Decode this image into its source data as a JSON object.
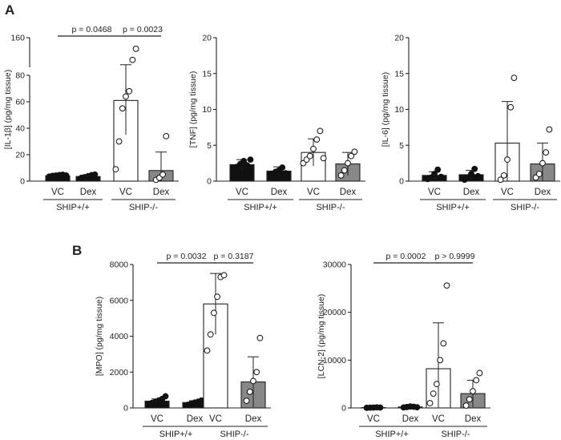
{
  "panel_labels": [
    "A",
    "B"
  ],
  "chart_data": [
    {
      "type": "bar",
      "ylabel": "[IL-1β] (pg/mg tissue)",
      "categories": [
        "VC",
        "Dex",
        "VC",
        "Dex"
      ],
      "groups": [
        "SHIP+/+",
        "SHIP-/-"
      ],
      "broken_axis": true,
      "ylim": [
        0,
        160
      ],
      "yticks": [
        0,
        20,
        40,
        60,
        80,
        160
      ],
      "means": [
        4,
        3.5,
        61,
        8
      ],
      "sd": [
        0.8,
        1.2,
        26,
        14
      ],
      "points": [
        [
          3.5,
          4,
          4.2,
          4.6,
          4.8,
          4.3
        ],
        [
          2.5,
          3,
          3.8,
          4.5,
          5
        ],
        [
          9,
          30,
          55,
          64,
          68,
          100,
          130
        ],
        [
          1,
          2.5,
          5,
          34
        ]
      ],
      "fills": [
        "#111111",
        "#111111",
        "#ffffff",
        "#888888"
      ],
      "comparisons": [
        {
          "label": "p = 0.0468",
          "from": 0,
          "to": 2
        },
        {
          "label": "p = 0.0023",
          "from": 2,
          "to": 3
        }
      ]
    },
    {
      "type": "bar",
      "ylabel": "[TNF] (pg/mg tissue)",
      "categories": [
        "VC",
        "Dex",
        "VC",
        "Dex"
      ],
      "groups": [
        "SHIP+/+",
        "SHIP-/-"
      ],
      "ylim": [
        0,
        20
      ],
      "yticks": [
        0,
        5,
        10,
        15,
        20
      ],
      "means": [
        2.3,
        1.4,
        4.0,
        2.4
      ],
      "sd": [
        0.7,
        0.6,
        1.9,
        1.6
      ],
      "points": [
        [
          1.5,
          2.0,
          2.4,
          2.8,
          2.2,
          3.0
        ],
        [
          1.0,
          1.3,
          1.5,
          1.9,
          1.1
        ],
        [
          2.5,
          3.0,
          3.5,
          4.5,
          5.8,
          7.0,
          3.2
        ],
        [
          0.8,
          1.5,
          2.5,
          3.5,
          4.1
        ]
      ],
      "fills": [
        "#111111",
        "#111111",
        "#ffffff",
        "#888888"
      ],
      "comparisons": []
    },
    {
      "type": "bar",
      "ylabel": "[IL-6] (pg/mg tissue)",
      "categories": [
        "VC",
        "Dex",
        "VC",
        "Dex"
      ],
      "groups": [
        "SHIP+/+",
        "SHIP-/-"
      ],
      "ylim": [
        0,
        20
      ],
      "yticks": [
        0,
        5,
        10,
        15,
        20
      ],
      "means": [
        0.8,
        0.9,
        5.3,
        2.4
      ],
      "sd": [
        0.5,
        0.6,
        5.8,
        2.9
      ],
      "points": [
        [
          0.3,
          0.5,
          1.0,
          1.6,
          0.6
        ],
        [
          0.2,
          0.5,
          1.0,
          1.7,
          0.7
        ],
        [
          0.2,
          0.8,
          3.0,
          10.3,
          14.4
        ],
        [
          0.5,
          1.0,
          2.5,
          4.0,
          7.2
        ]
      ],
      "fills": [
        "#111111",
        "#111111",
        "#ffffff",
        "#888888"
      ],
      "comparisons": []
    },
    {
      "type": "bar",
      "ylabel": "[MPO] (pg/mg tissue)",
      "categories": [
        "VC",
        "Dex",
        "VC",
        "Dex"
      ],
      "groups": [
        "SHIP+/+",
        "SHIP-/-"
      ],
      "ylim": [
        0,
        8000
      ],
      "yticks": [
        0,
        2000,
        4000,
        6000,
        8000
      ],
      "means": [
        380,
        300,
        5800,
        1450
      ],
      "sd": [
        120,
        100,
        1700,
        1400
      ],
      "points": [
        [
          220,
          280,
          350,
          420,
          500,
          650
        ],
        [
          180,
          250,
          300,
          350,
          420
        ],
        [
          3200,
          4100,
          5300,
          6200,
          7300,
          7400
        ],
        [
          400,
          900,
          1500,
          2000,
          3900
        ]
      ],
      "fills": [
        "#111111",
        "#111111",
        "#ffffff",
        "#888888"
      ],
      "comparisons": [
        {
          "label": "p = 0.0032",
          "from": 0,
          "to": 2
        },
        {
          "label": "p = 0.3187",
          "from": 2,
          "to": 3
        }
      ]
    },
    {
      "type": "bar",
      "ylabel": "[LCN-2] (pg/mg tissue)",
      "categories": [
        "VC",
        "Dex",
        "VC",
        "Dex"
      ],
      "groups": [
        "SHIP+/+",
        "SHIP-/-"
      ],
      "ylim": [
        0,
        30000
      ],
      "yticks": [
        0,
        10000,
        20000,
        30000
      ],
      "means": [
        80,
        200,
        8200,
        3000
      ],
      "sd": [
        40,
        150,
        9600,
        2800
      ],
      "points": [
        [
          30,
          60,
          90,
          120,
          80
        ],
        [
          100,
          200,
          300,
          250,
          150
        ],
        [
          1000,
          3000,
          5000,
          10000,
          13500,
          25600
        ],
        [
          500,
          1800,
          3500,
          5800,
          7300
        ]
      ],
      "fills": [
        "#111111",
        "#111111",
        "#ffffff",
        "#888888"
      ],
      "comparisons": [
        {
          "label": "p = 0.0002",
          "from": 0,
          "to": 2
        },
        {
          "label": "p > 0.9999",
          "from": 2,
          "to": 3
        }
      ]
    }
  ]
}
